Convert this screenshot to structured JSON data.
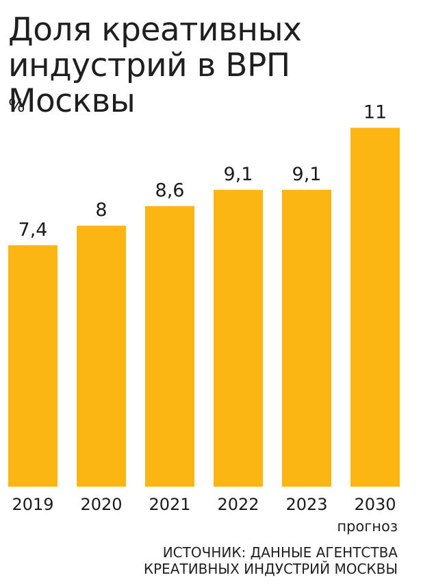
{
  "title": "Доля креативных индустрий в ВРП Москвы",
  "unit": "%",
  "note": "прогноз",
  "source_line1": "ИСТОЧНИК: ДАННЫЕ АГЕНТСТВА",
  "source_line2": "КРЕАТИВНЫХ ИНДУСТРИЙ МОСКВЫ",
  "bar_color": "#FBB613",
  "chart_data": {
    "type": "bar",
    "title": "Доля креативных индустрий в ВРП Москвы",
    "ylabel": "%",
    "xlabel": "",
    "categories": [
      "2019",
      "2020",
      "2021",
      "2022",
      "2023",
      "2030"
    ],
    "values": [
      7.4,
      8,
      8.6,
      9.1,
      9.1,
      11
    ],
    "value_labels": [
      "7,4",
      "8",
      "8,6",
      "9,1",
      "9,1",
      "11"
    ],
    "ylim": [
      0,
      11.5
    ],
    "grid": false,
    "legend": "none"
  }
}
